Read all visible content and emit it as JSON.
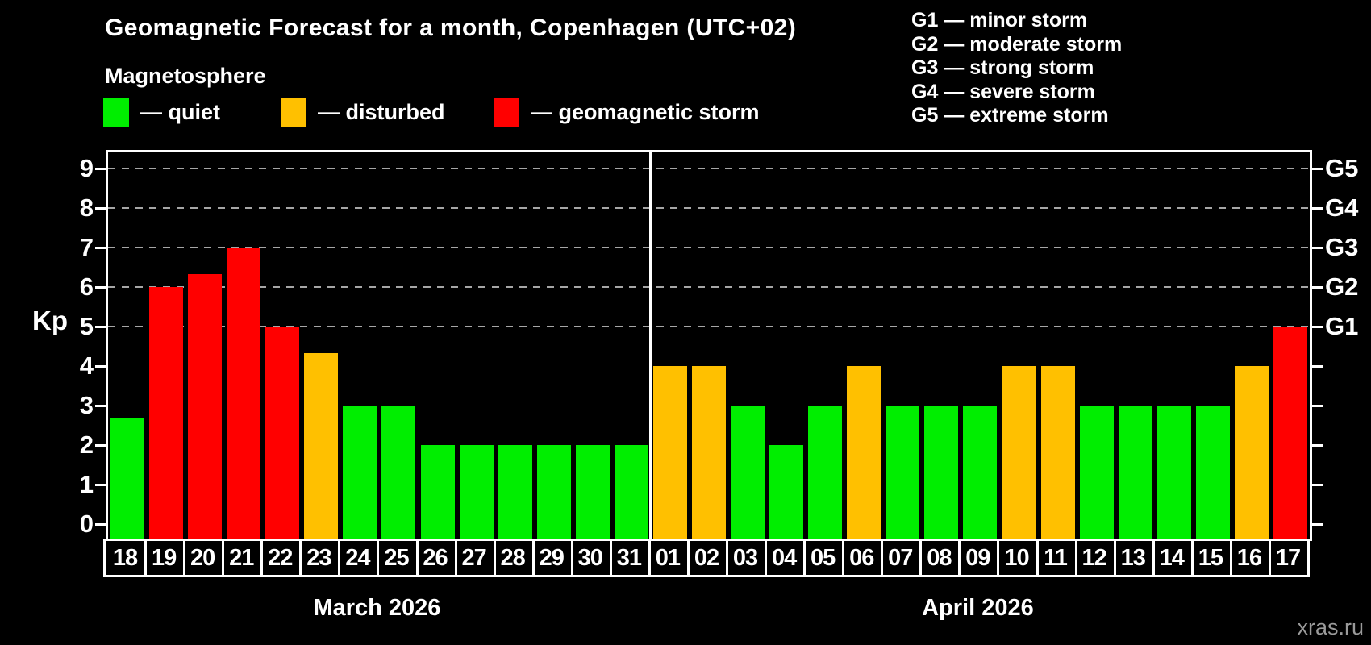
{
  "title": "Geomagnetic Forecast for a month, Copenhagen (UTC+02)",
  "subtitle": "Magnetosphere",
  "watermark": "xras.ru",
  "colors": {
    "quiet": "#00ee00",
    "disturbed": "#ffc000",
    "storm": "#ff0000",
    "background": "#000000",
    "axis": "#ffffff",
    "gridline": "#a6a6a6"
  },
  "legend": [
    {
      "key": "quiet",
      "label": "— quiet"
    },
    {
      "key": "disturbed",
      "label": "— disturbed"
    },
    {
      "key": "storm",
      "label": "— geomagnetic storm"
    }
  ],
  "storm_scale_legend": [
    {
      "level": "G1",
      "description": "minor storm",
      "text": "G1 — minor storm"
    },
    {
      "level": "G2",
      "description": "moderate storm",
      "text": "G2 — moderate storm"
    },
    {
      "level": "G3",
      "description": "strong storm",
      "text": "G3 — strong storm"
    },
    {
      "level": "G4",
      "description": "severe storm",
      "text": "G4 — severe storm"
    },
    {
      "level": "G5",
      "description": "extreme storm",
      "text": "G5 — extreme storm"
    }
  ],
  "chart_data": {
    "type": "bar",
    "title": "Geomagnetic Forecast for a month, Copenhagen (UTC+02)",
    "ylabel": "Kp",
    "ylim": [
      0,
      9.5
    ],
    "yticks": [
      0,
      1,
      2,
      3,
      4,
      5,
      6,
      7,
      8,
      9
    ],
    "gridlines_kp": [
      5,
      6,
      7,
      8,
      9
    ],
    "grid": "horizontal dashed at G-storm levels",
    "legend_position": "top-left",
    "right_axis": [
      {
        "kp": 5,
        "label": "G1"
      },
      {
        "kp": 6,
        "label": "G2"
      },
      {
        "kp": 7,
        "label": "G3"
      },
      {
        "kp": 8,
        "label": "G4"
      },
      {
        "kp": 9,
        "label": "G5"
      }
    ],
    "months": [
      {
        "label": "March 2026",
        "days": [
          {
            "day": "18",
            "kp": 2.67,
            "status": "quiet"
          },
          {
            "day": "19",
            "kp": 6,
            "status": "storm"
          },
          {
            "day": "20",
            "kp": 6.33,
            "status": "storm"
          },
          {
            "day": "21",
            "kp": 7,
            "status": "storm"
          },
          {
            "day": "22",
            "kp": 5,
            "status": "storm"
          },
          {
            "day": "23",
            "kp": 4.33,
            "status": "disturbed"
          },
          {
            "day": "24",
            "kp": 3,
            "status": "quiet"
          },
          {
            "day": "25",
            "kp": 3,
            "status": "quiet"
          },
          {
            "day": "26",
            "kp": 2,
            "status": "quiet"
          },
          {
            "day": "27",
            "kp": 2,
            "status": "quiet"
          },
          {
            "day": "28",
            "kp": 2,
            "status": "quiet"
          },
          {
            "day": "29",
            "kp": 2,
            "status": "quiet"
          },
          {
            "day": "30",
            "kp": 2,
            "status": "quiet"
          },
          {
            "day": "31",
            "kp": 2,
            "status": "quiet"
          }
        ]
      },
      {
        "label": "April 2026",
        "days": [
          {
            "day": "01",
            "kp": 4,
            "status": "disturbed"
          },
          {
            "day": "02",
            "kp": 4,
            "status": "disturbed"
          },
          {
            "day": "03",
            "kp": 3,
            "status": "quiet"
          },
          {
            "day": "04",
            "kp": 2,
            "status": "quiet"
          },
          {
            "day": "05",
            "kp": 3,
            "status": "quiet"
          },
          {
            "day": "06",
            "kp": 4,
            "status": "disturbed"
          },
          {
            "day": "07",
            "kp": 3,
            "status": "quiet"
          },
          {
            "day": "08",
            "kp": 3,
            "status": "quiet"
          },
          {
            "day": "09",
            "kp": 3,
            "status": "quiet"
          },
          {
            "day": "10",
            "kp": 4,
            "status": "disturbed"
          },
          {
            "day": "11",
            "kp": 4,
            "status": "disturbed"
          },
          {
            "day": "12",
            "kp": 3,
            "status": "quiet"
          },
          {
            "day": "13",
            "kp": 3,
            "status": "quiet"
          },
          {
            "day": "14",
            "kp": 3,
            "status": "quiet"
          },
          {
            "day": "15",
            "kp": 3,
            "status": "quiet"
          },
          {
            "day": "16",
            "kp": 4,
            "status": "disturbed"
          },
          {
            "day": "17",
            "kp": 5,
            "status": "storm"
          }
        ]
      }
    ]
  }
}
